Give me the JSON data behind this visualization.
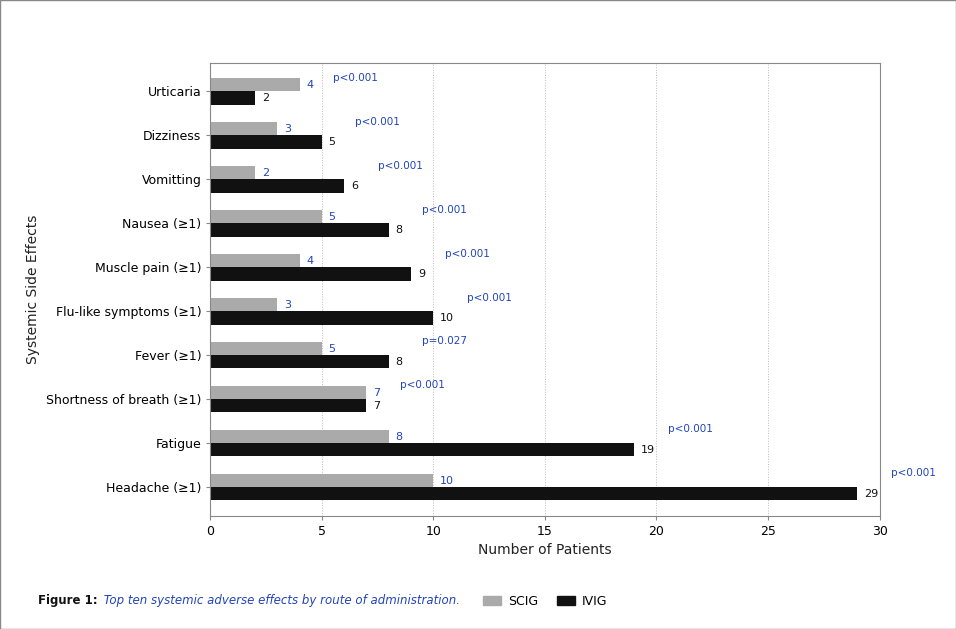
{
  "categories": [
    "Urticaria",
    "Dizziness",
    "Vomitting",
    "Nausea (≥1)",
    "Muscle pain (≥1)",
    "Flu-like symptoms (≥1)",
    "Fever (≥1)",
    "Shortness of breath (≥1)",
    "Fatigue",
    "Headache (≥1)"
  ],
  "scig_values": [
    4,
    3,
    2,
    5,
    4,
    3,
    5,
    7,
    8,
    10
  ],
  "ivig_values": [
    2,
    5,
    6,
    8,
    9,
    10,
    8,
    7,
    19,
    29
  ],
  "p_values": [
    "p<0.001",
    "p<0.001",
    "p<0.001",
    "p<0.001",
    "p<0.001",
    "p<0.001",
    "p=0.027",
    "p<0.001",
    "p<0.001",
    "p<0.001"
  ],
  "scig_color": "#aaaaaa",
  "ivig_color": "#111111",
  "scig_num_color": "#2244bb",
  "ivig_num_color": "#111111",
  "pval_color": "#2244bb",
  "xlabel": "Number of Patients",
  "ylabel": "Systemic Side Effects",
  "xlim": [
    0,
    30
  ],
  "xticks": [
    0,
    5,
    10,
    15,
    20,
    25,
    30
  ],
  "legend_labels": [
    "SCIG",
    "IVIG"
  ],
  "figure_caption_bold": "Figure 1:",
  "figure_caption_rest": " Top ten systemic adverse effects by route of administration.",
  "background_color": "#ffffff",
  "bar_height": 0.3,
  "title": "",
  "border_color": "#cccccc"
}
